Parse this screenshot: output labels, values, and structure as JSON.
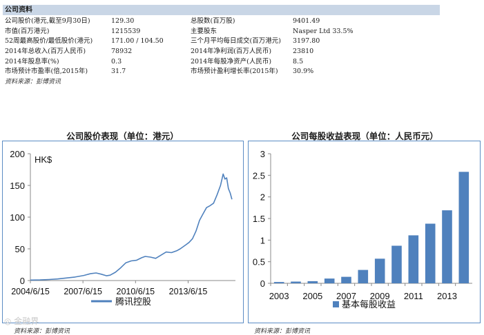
{
  "info": {
    "header": "公司资料",
    "rows": [
      [
        "公司股价(港元,截至9月30日)",
        "129.30",
        "总股数(百万股)",
        "9401.49"
      ],
      [
        "市值(百万港元)",
        "1215539",
        "主要股东",
        "Nasper Ltd 33.5%"
      ],
      [
        "52周最高股价/最低股价(港元)",
        "171.00    /   104.50",
        "三个月平均每日成交(百万港元)",
        "3197.80"
      ],
      [
        "2014年总收入(百万人民币)",
        "78932",
        "2014年净利润(百万人民币)",
        "23810"
      ],
      [
        "2014年股息率(%)",
        "0.3",
        "2014年每股净资产(人民币)",
        "8.5"
      ],
      [
        "市场预计市盈率(倍,2015年)",
        "31.7",
        "市场预计盈利增长率(2015年)",
        "30.9%"
      ]
    ],
    "source": "资料来源：彭博资讯"
  },
  "watermark": "◎ 金融界",
  "chart_data": [
    {
      "type": "line",
      "title": "公司股价表现（单位：港元）",
      "ylabel": "HK$",
      "ylim": [
        0,
        200
      ],
      "yticks": [
        "0",
        "50",
        "100",
        "150",
        "200"
      ],
      "xticks": [
        "2004/6/15",
        "2007/6/15",
        "2010/6/15",
        "2013/6/15"
      ],
      "xtick_values": [
        2004.45,
        2007.45,
        2010.45,
        2013.45
      ],
      "xlim": [
        2004.45,
        2016.15
      ],
      "series": [
        {
          "name": "腾讯控股",
          "color": "#4f81bd",
          "x": [
            2004.45,
            2005.0,
            2005.5,
            2006.0,
            2006.5,
            2007.0,
            2007.5,
            2007.9,
            2008.2,
            2008.5,
            2008.8,
            2009.0,
            2009.3,
            2009.6,
            2009.9,
            2010.2,
            2010.5,
            2010.8,
            2011.0,
            2011.3,
            2011.6,
            2011.9,
            2012.2,
            2012.5,
            2012.8,
            2013.0,
            2013.3,
            2013.5,
            2013.7,
            2013.9,
            2014.1,
            2014.3,
            2014.5,
            2014.7,
            2014.9,
            2015.1,
            2015.3,
            2015.45,
            2015.55,
            2015.65,
            2015.75,
            2015.85,
            2015.95
          ],
          "values": [
            0.8,
            1.0,
            1.6,
            2.5,
            4.0,
            5.5,
            8.0,
            11.0,
            12.0,
            10.0,
            7.5,
            8.5,
            13.0,
            20.0,
            28.0,
            31.0,
            32.0,
            36.0,
            38.0,
            37.0,
            35.0,
            40.0,
            45.0,
            44.0,
            47.0,
            50.0,
            56.0,
            60.0,
            66.0,
            78.0,
            95.0,
            105.0,
            115.0,
            118.0,
            122.0,
            135.0,
            150.0,
            168.0,
            160.0,
            162.0,
            145.0,
            138.0,
            128.0
          ]
        }
      ]
    },
    {
      "type": "bar",
      "title": "公司每股收益表现（单位：人民币元）",
      "ylim": [
        0,
        3
      ],
      "yticks": [
        "0",
        "0.5",
        "1",
        "1.5",
        "2",
        "2.5",
        "3"
      ],
      "categories": [
        "2003",
        "2004",
        "2005",
        "2006",
        "2007",
        "2008",
        "2009",
        "2010",
        "2011",
        "2012",
        "2013",
        "2014"
      ],
      "xtick_labels": [
        "2003",
        "2005",
        "2007",
        "2009",
        "2011",
        "2013"
      ],
      "series": [
        {
          "name": "基本每股收益",
          "color": "#4f81bd",
          "values": [
            0.03,
            0.04,
            0.05,
            0.11,
            0.15,
            0.31,
            0.57,
            0.87,
            1.11,
            1.38,
            1.69,
            2.58
          ]
        }
      ]
    }
  ]
}
